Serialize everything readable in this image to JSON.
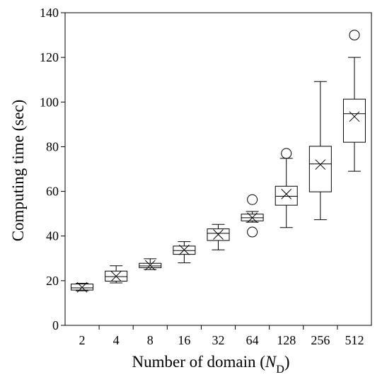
{
  "chart_data": {
    "type": "box",
    "title": "",
    "xlabel": "Number of domain (N_D)",
    "xlabel_parts": {
      "main": "Number of domain (",
      "var": "N",
      "sub": "D",
      "close": ")"
    },
    "ylabel": "Computing time (sec)",
    "ylim": [
      0,
      140
    ],
    "yticks": [
      0,
      20,
      40,
      60,
      80,
      100,
      120,
      140
    ],
    "ytick_labels": [
      "0",
      "20",
      "40",
      "60",
      "80",
      "100",
      "120",
      "140"
    ],
    "categories": [
      "2",
      "4",
      "8",
      "16",
      "32",
      "64",
      "128",
      "256",
      "512"
    ],
    "boxes": [
      {
        "category": "2",
        "whisker_low": 15.5,
        "q1": 15.8,
        "median": 16.8,
        "q3": 18.5,
        "whisker_high": 18.8,
        "mean": 17.0,
        "outliers": []
      },
      {
        "category": "4",
        "whisker_low": 19.0,
        "q1": 19.8,
        "median": 21.8,
        "q3": 24.3,
        "whisker_high": 26.7,
        "mean": 22.0,
        "outliers": []
      },
      {
        "category": "8",
        "whisker_low": 25.0,
        "q1": 25.8,
        "median": 26.6,
        "q3": 27.8,
        "whisker_high": 29.8,
        "mean": 26.9,
        "outliers": []
      },
      {
        "category": "16",
        "whisker_low": 28.0,
        "q1": 31.8,
        "median": 33.5,
        "q3": 35.5,
        "whisker_high": 37.5,
        "mean": 33.8,
        "outliers": []
      },
      {
        "category": "32",
        "whisker_low": 33.8,
        "q1": 38.0,
        "median": 41.2,
        "q3": 43.2,
        "whisker_high": 45.2,
        "mean": 40.7,
        "outliers": []
      },
      {
        "category": "64",
        "whisker_low": 46.2,
        "q1": 46.8,
        "median": 48.2,
        "q3": 49.8,
        "whisker_high": 51.0,
        "mean": 48.2,
        "outliers": [
          41.8,
          56.3
        ]
      },
      {
        "category": "128",
        "whisker_low": 43.8,
        "q1": 53.8,
        "median": 57.8,
        "q3": 62.3,
        "whisker_high": 74.8,
        "mean": 58.8,
        "outliers": [
          77.0
        ]
      },
      {
        "category": "256",
        "whisker_low": 47.3,
        "q1": 59.8,
        "median": 72.3,
        "q3": 80.2,
        "whisker_high": 109.2,
        "mean": 72.0,
        "outliers": []
      },
      {
        "category": "512",
        "whisker_low": 69.0,
        "q1": 82.0,
        "median": 94.8,
        "q3": 101.3,
        "whisker_high": 120.0,
        "mean": 93.5,
        "outliers": [
          130.0
        ]
      }
    ]
  }
}
